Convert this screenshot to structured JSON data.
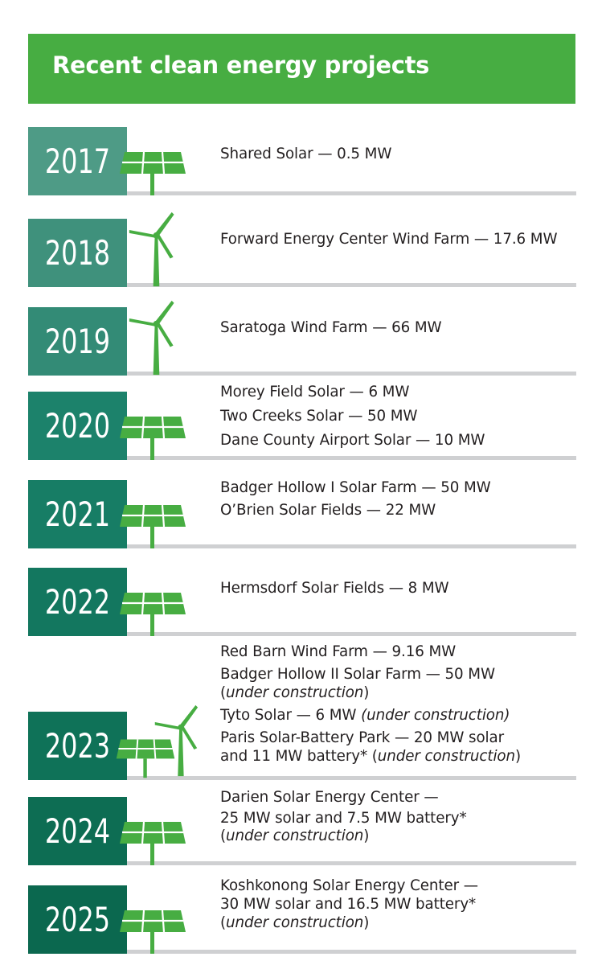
{
  "header": {
    "title": "Recent clean energy projects"
  },
  "colors": {
    "header_green": "#47ad42",
    "icon_green": "#47ad42",
    "rule_gray": "#cfd0d2",
    "text": "#231f20",
    "year_2017": "#4e9b86",
    "year_2018": "#3f917c",
    "year_2019": "#338b76",
    "year_2020": "#1c826b",
    "year_2021": "#177d65",
    "year_2022": "#13775f",
    "year_2023": "#0f7258",
    "year_2024": "#0d6d53",
    "year_2025": "#0b684f"
  },
  "rows": [
    {
      "year": "2017",
      "icon": "solar-panel-icon",
      "lines": [
        {
          "text": "Shared Solar — 0.5 MW"
        }
      ]
    },
    {
      "year": "2018",
      "icon": "wind-turbine-icon",
      "lines": [
        {
          "text": "Forward Energy Center Wind Farm — 17.6 MW"
        }
      ]
    },
    {
      "year": "2019",
      "icon": "wind-turbine-icon",
      "lines": [
        {
          "text": "Saratoga Wind Farm — 66 MW"
        }
      ]
    },
    {
      "year": "2020",
      "icon": "solar-panel-icon",
      "lines": [
        {
          "text": "Morey Field Solar — 6 MW"
        },
        {
          "text": "Two Creeks Solar — 50 MW"
        },
        {
          "text": "Dane County Airport Solar — 10 MW"
        }
      ]
    },
    {
      "year": "2021",
      "icon": "solar-panel-icon",
      "lines": [
        {
          "text": "Badger Hollow I Solar Farm — 50 MW"
        },
        {
          "text": "O’Brien Solar Fields — 22 MW"
        }
      ]
    },
    {
      "year": "2022",
      "icon": "solar-panel-icon",
      "lines": [
        {
          "text": "Hermsdorf Solar Fields — 8 MW"
        }
      ]
    },
    {
      "year": "2023",
      "icon": "solar-and-wind-icon",
      "lines": [
        {
          "text": "Red Barn Wind Farm — 9.16 MW"
        },
        {
          "text": "Badger Hollow II Solar Farm — 50 MW"
        },
        {
          "pre": "(",
          "em": "under construction",
          "post": ")"
        },
        {
          "pre": "Tyto Solar — 6 MW ",
          "em": "(under construction)",
          "post": ""
        },
        {
          "text": "Paris Solar-Battery Park — 20 MW solar"
        },
        {
          "pre": "and 11 MW battery* (",
          "em": "under construction",
          "post": ")"
        }
      ]
    },
    {
      "year": "2024",
      "icon": "solar-panel-icon",
      "lines": [
        {
          "text": "Darien Solar Energy Center —"
        },
        {
          "text": "25 MW solar and 7.5 MW battery*"
        },
        {
          "pre": "(",
          "em": "under construction",
          "post": ")"
        }
      ]
    },
    {
      "year": "2025",
      "icon": "solar-panel-icon",
      "lines": [
        {
          "text": "Koshkonong Solar Energy Center —"
        },
        {
          "text": "30 MW solar and 16.5 MW battery*"
        },
        {
          "pre": "(",
          "em": "under construction",
          "post": ")"
        }
      ]
    }
  ]
}
